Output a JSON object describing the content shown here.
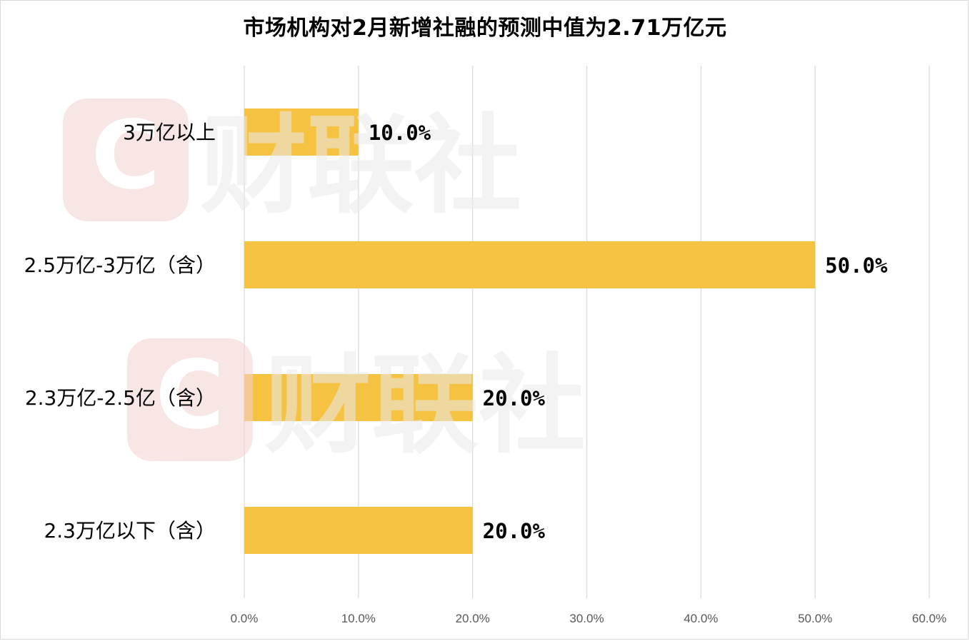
{
  "chart_data": {
    "type": "bar",
    "orientation": "horizontal",
    "title": "市场机构对2月新增社融的预测中值为2.71万亿元",
    "categories": [
      "3万亿以上",
      "2.5万亿-3万亿（含）",
      "2.3万亿-2.5亿（含）",
      "2.3万亿以下（含）"
    ],
    "values": [
      10.0,
      50.0,
      20.0,
      20.0
    ],
    "data_labels": [
      "10.0%",
      "50.0%",
      "20.0%",
      "20.0%"
    ],
    "xlim": [
      0,
      60
    ],
    "xticks": [
      0,
      10,
      20,
      30,
      40,
      50,
      60
    ],
    "xtick_labels": [
      "0.0%",
      "10.0%",
      "20.0%",
      "30.0%",
      "40.0%",
      "50.0%",
      "60.0%"
    ],
    "xlabel": "",
    "ylabel": "",
    "grid": "vertical",
    "legend": "none",
    "bar_color": "#F5C242"
  },
  "watermark": {
    "text": "财联社",
    "badge_color": "#F3D3D1",
    "text_color": "#EBEBEB"
  }
}
